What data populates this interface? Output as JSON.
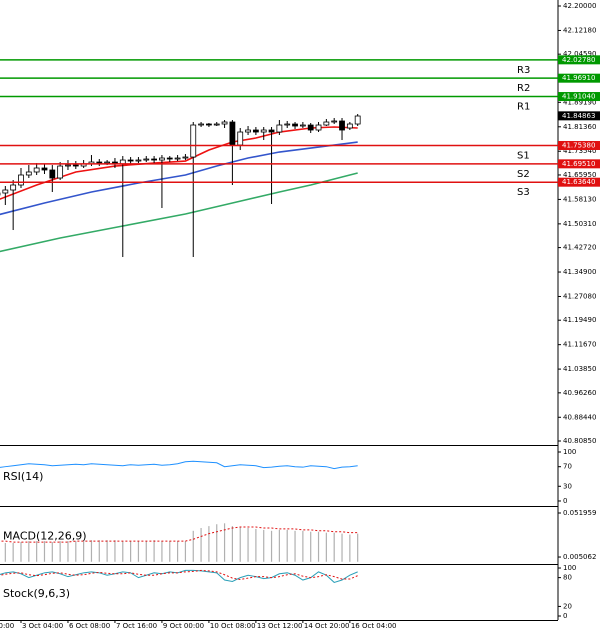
{
  "chart_data": [
    {
      "type": "candlestick",
      "xticks": [
        {
          "value": 0,
          "label": "0:00"
        },
        {
          "value": 3,
          "label": "3 Oct 04:00"
        },
        {
          "value": 9,
          "label": "6 Oct 08:00"
        },
        {
          "value": 15,
          "label": "7 Oct 16:00"
        },
        {
          "value": 21,
          "label": "9 Oct 00:00"
        },
        {
          "value": 27,
          "label": "10 Oct 08:00"
        },
        {
          "value": 33,
          "label": "13 Oct 12:00"
        },
        {
          "value": 39,
          "label": "14 Oct 20:00"
        },
        {
          "value": 45,
          "label": "16 Oct 04:00"
        }
      ],
      "open": [
        41.5954,
        41.6018,
        41.6114,
        41.6274,
        41.6594,
        41.669,
        41.6818,
        41.6754,
        41.6498,
        41.6881,
        41.6913,
        41.6881,
        41.6945,
        41.7009,
        41.6977,
        41.7009,
        41.6945,
        41.7073,
        41.7041,
        41.7073,
        41.7105,
        41.7073,
        41.7137,
        41.7105,
        41.7137,
        41.7169,
        41.8193,
        41.8225,
        41.8193,
        41.8225,
        41.8289,
        41.7553,
        41.7969,
        41.8033,
        41.7969,
        41.8033,
        41.7969,
        41.8193,
        41.8225,
        41.8161,
        41.8193,
        41.8033,
        41.8193,
        41.8289,
        41.8321,
        41.8097,
        41.8225
      ],
      "high": [
        41.6178,
        41.6242,
        41.6434,
        41.6818,
        41.6913,
        41.6977,
        41.6945,
        41.6913,
        41.7009,
        41.7073,
        41.7041,
        41.7073,
        41.7233,
        41.7105,
        41.7073,
        41.7137,
        41.7201,
        41.7169,
        41.7169,
        41.7201,
        41.7201,
        41.7233,
        41.7201,
        41.7233,
        41.7265,
        41.8289,
        41.8289,
        41.8257,
        41.8289,
        41.8353,
        41.8353,
        41.8097,
        41.8161,
        41.8129,
        41.8129,
        41.8129,
        41.8353,
        41.8321,
        41.8289,
        41.8289,
        41.8257,
        41.8289,
        41.8385,
        41.8417,
        41.8417,
        41.8289,
        41.8545
      ],
      "low": [
        41.5794,
        41.5634,
        41.4834,
        41.6178,
        41.6498,
        41.6594,
        41.6626,
        41.605,
        41.6434,
        41.6754,
        41.6786,
        41.6818,
        41.6881,
        41.6881,
        41.6913,
        41.6818,
        41.397,
        41.6945,
        41.6977,
        41.7009,
        41.6977,
        41.5538,
        41.7009,
        41.7041,
        41.7073,
        41.397,
        41.8129,
        41.8129,
        41.8161,
        41.8097,
        41.6274,
        41.7393,
        41.7873,
        41.7873,
        41.7713,
        41.5666,
        41.7873,
        41.8097,
        41.8065,
        41.8097,
        41.7937,
        41.7969,
        41.8161,
        41.8225,
        41.7713,
        41.8033,
        41.8161
      ],
      "close": [
        41.6018,
        41.6114,
        41.6274,
        41.6594,
        41.669,
        41.6818,
        41.6754,
        41.6498,
        41.6881,
        41.6913,
        41.6881,
        41.6945,
        41.7009,
        41.6977,
        41.7009,
        41.6945,
        41.7073,
        41.7041,
        41.7073,
        41.7105,
        41.7073,
        41.7137,
        41.7105,
        41.7137,
        41.7169,
        41.8193,
        41.8225,
        41.8193,
        41.8225,
        41.8289,
        41.7553,
        41.7969,
        41.8033,
        41.7969,
        41.8033,
        41.7969,
        41.8193,
        41.8225,
        41.8161,
        41.8193,
        41.8033,
        41.8193,
        41.8289,
        41.8321,
        41.8033,
        41.8225,
        41.8481
      ],
      "lines": [
        {
          "color": "#ee1111",
          "x": [
            0,
            5,
            10,
            15,
            20,
            24,
            27,
            30,
            33,
            36,
            40,
            43,
            46
          ],
          "values": [
            41.5794,
            41.6274,
            41.669,
            41.6881,
            41.6977,
            41.7041,
            41.7393,
            41.7649,
            41.7777,
            41.7969,
            41.8097,
            41.8129,
            41.8097
          ]
        },
        {
          "color": "#3355cc",
          "x": [
            0,
            6,
            12,
            18,
            24,
            28,
            32,
            36,
            40,
            43,
            46
          ],
          "values": [
            41.5314,
            41.5698,
            41.605,
            41.6338,
            41.6594,
            41.6881,
            41.7137,
            41.7329,
            41.7457,
            41.7553,
            41.7649
          ]
        },
        {
          "color": "#33aa66",
          "x": [
            0,
            8,
            16,
            24,
            30,
            36,
            40,
            44,
            46
          ],
          "values": [
            41.413,
            41.4578,
            41.4962,
            41.5346,
            41.5698,
            41.605,
            41.6274,
            41.653,
            41.6658
          ]
        }
      ],
      "levels": [
        {
          "name": "R3",
          "value": 42.0278,
          "value_label": "42.02780",
          "color": "#009900"
        },
        {
          "name": "R2",
          "value": 41.9691,
          "value_label": "41.96910",
          "color": "#009900"
        },
        {
          "name": "R1",
          "value": 41.9104,
          "value_label": "41.91040",
          "color": "#009900"
        },
        {
          "name": "S1",
          "value": 41.7538,
          "value_label": "41.75380",
          "color": "#e01010"
        },
        {
          "name": "S2",
          "value": 41.6951,
          "value_label": "41.69510",
          "color": "#e01010"
        },
        {
          "name": "S3",
          "value": 41.6364,
          "value_label": "41.63640",
          "color": "#e01010"
        }
      ],
      "last_price": 41.84863,
      "ylim": [
        40.7957,
        42.2192
      ],
      "yticks": [
        {
          "value": 42.2,
          "label": "42.20000"
        },
        {
          "value": 42.1218,
          "label": "42.12180"
        },
        {
          "value": 42.0459,
          "label": "42.04590"
        },
        {
          "value": 41.8919,
          "label": "41.89190"
        },
        {
          "value": 41.8136,
          "label": "41.81360"
        },
        {
          "value": 41.7354,
          "label": "41.73540"
        },
        {
          "value": 41.6595,
          "label": "41.65950"
        },
        {
          "value": 41.5813,
          "label": "41.58130"
        },
        {
          "value": 41.5031,
          "label": "41.50310"
        },
        {
          "value": 41.4272,
          "label": "41.42720"
        },
        {
          "value": 41.349,
          "label": "41.34900"
        },
        {
          "value": 41.2708,
          "label": "41.27080"
        },
        {
          "value": 41.1949,
          "label": "41.19490"
        },
        {
          "value": 41.1167,
          "label": "41.11670"
        },
        {
          "value": 41.0385,
          "label": "41.03850"
        },
        {
          "value": 40.9626,
          "label": "40.96260"
        },
        {
          "value": 40.8844,
          "label": "40.88440"
        },
        {
          "value": 40.8085,
          "label": "40.80850"
        }
      ]
    },
    {
      "type": "line",
      "label": "RSI(14)",
      "ylim": [
        -8.2,
        110.2
      ],
      "yticks": [
        100,
        70,
        30,
        0
      ],
      "series": [
        {
          "color": "#1e90ff",
          "values": [
            68,
            70,
            72,
            74,
            76,
            75,
            74,
            72,
            73,
            74,
            75,
            74,
            76,
            75,
            74,
            73,
            72,
            74,
            73,
            74,
            75,
            73,
            74,
            76,
            80,
            81,
            80,
            79,
            78,
            70,
            72,
            74,
            73,
            72,
            68,
            69,
            71,
            72,
            70,
            69,
            72,
            71,
            70,
            66,
            69,
            70,
            72
          ]
        }
      ]
    },
    {
      "type": "macd",
      "label": "MACD(12,26,9)",
      "ylim": [
        -0.0013,
        0.0573
      ],
      "yticks": [
        0.051959,
        0.005062
      ],
      "values": [
        0.021,
        0.02,
        0.02,
        0.021,
        0.022,
        0.022,
        0.022,
        0.021,
        0.022,
        0.022,
        0.022,
        0.022,
        0.023,
        0.023,
        0.023,
        0.023,
        0.022,
        0.022,
        0.022,
        0.022,
        0.023,
        0.022,
        0.022,
        0.022,
        0.022,
        0.033,
        0.036,
        0.038,
        0.04,
        0.041,
        0.038,
        0.037,
        0.036,
        0.035,
        0.034,
        0.033,
        0.034,
        0.034,
        0.033,
        0.033,
        0.032,
        0.032,
        0.031,
        0.031,
        0.03,
        0.029,
        0.03
      ],
      "color": "#b0b0b0",
      "signal": {
        "color": "#e01010",
        "values": [
          0.022,
          0.022,
          0.021,
          0.021,
          0.021,
          0.021,
          0.021,
          0.021,
          0.021,
          0.021,
          0.022,
          0.022,
          0.022,
          0.022,
          0.022,
          0.022,
          0.022,
          0.022,
          0.022,
          0.022,
          0.022,
          0.022,
          0.022,
          0.022,
          0.022,
          0.024,
          0.027,
          0.03,
          0.032,
          0.034,
          0.036,
          0.037,
          0.037,
          0.037,
          0.036,
          0.036,
          0.035,
          0.035,
          0.035,
          0.034,
          0.034,
          0.033,
          0.033,
          0.032,
          0.032,
          0.031,
          0.031
        ]
      }
    },
    {
      "type": "line",
      "label": "Stock(9,6,3)",
      "ylim": [
        -8.3,
        104.2
      ],
      "yticks": [
        100,
        80,
        20,
        0
      ],
      "series": [
        {
          "color": "#2a9fb8",
          "values": [
            85,
            90,
            92,
            88,
            80,
            85,
            90,
            92,
            88,
            82,
            86,
            90,
            92,
            90,
            85,
            88,
            92,
            90,
            80,
            85,
            90,
            88,
            92,
            90,
            95,
            95,
            94,
            92,
            90,
            75,
            72,
            80,
            85,
            82,
            78,
            80,
            88,
            90,
            85,
            75,
            80,
            92,
            85,
            70,
            75,
            85,
            92
          ]
        },
        {
          "color": "#e01010",
          "dash": true,
          "values": [
            84,
            87,
            89,
            90,
            86,
            84,
            86,
            89,
            90,
            87,
            85,
            86,
            89,
            91,
            89,
            88,
            88,
            90,
            87,
            85,
            85,
            88,
            90,
            90,
            92,
            93,
            95,
            94,
            92,
            86,
            79,
            76,
            79,
            82,
            82,
            80,
            82,
            86,
            88,
            83,
            80,
            82,
            86,
            82,
            77,
            77,
            84
          ]
        }
      ]
    }
  ]
}
